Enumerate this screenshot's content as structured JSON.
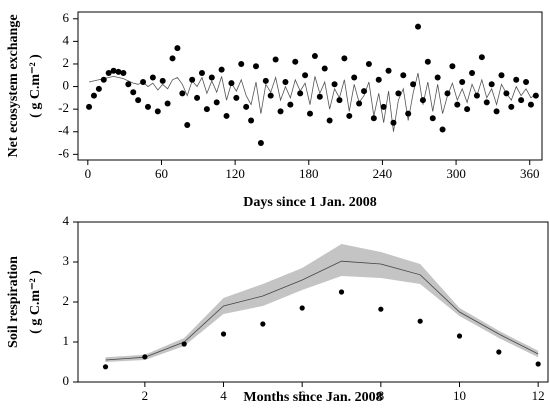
{
  "chart_data": [
    {
      "type": "scatter",
      "ylabel": "Net ecosystem exchange",
      "ylabel_unit": "( g C.m⁻² )",
      "xlabel": "Days since 1 Jan. 2008",
      "xlim": [
        -8,
        370
      ],
      "xticks": [
        0,
        60,
        120,
        180,
        240,
        300,
        360
      ],
      "ylim": [
        -6.5,
        6.6
      ],
      "yticks": [
        -6,
        -4,
        -2,
        0,
        2,
        4,
        6
      ],
      "x": [
        1,
        5,
        9,
        13,
        17,
        21,
        25,
        29,
        33,
        37,
        41,
        45,
        49,
        53,
        57,
        61,
        65,
        69,
        73,
        77,
        81,
        85,
        89,
        93,
        97,
        101,
        105,
        109,
        113,
        117,
        121,
        125,
        129,
        133,
        137,
        141,
        145,
        149,
        153,
        157,
        161,
        165,
        169,
        173,
        177,
        181,
        185,
        189,
        193,
        197,
        201,
        205,
        209,
        213,
        217,
        221,
        225,
        229,
        233,
        237,
        241,
        245,
        249,
        253,
        257,
        261,
        265,
        269,
        273,
        277,
        281,
        285,
        289,
        293,
        297,
        301,
        305,
        309,
        313,
        317,
        321,
        325,
        329,
        333,
        337,
        341,
        345,
        349,
        353,
        357,
        361,
        365
      ],
      "series": [
        {
          "color": "#555555",
          "style": "line",
          "values": [
            0.4,
            0.5,
            0.6,
            0.7,
            0.8,
            0.9,
            0.8,
            0.7,
            0.5,
            0.3,
            0.2,
            0.4,
            0.0,
            0.3,
            -0.3,
            0.2,
            -0.2,
            0.6,
            0.8,
            0.2,
            -0.8,
            0.5,
            0.0,
            0.8,
            -0.6,
            0.5,
            -0.5,
            0.9,
            -1.2,
            0.3,
            -0.4,
            0.6,
            -0.8,
            -1.6,
            0.4,
            -2.4,
            0.2,
            -0.5,
            0.8,
            -1.2,
            0.0,
            -1.0,
            0.6,
            -0.4,
            0.3,
            -1.6,
            0.9,
            -0.6,
            0.4,
            -2.0,
            -0.2,
            -1.0,
            0.6,
            -2.2,
            0.2,
            -1.4,
            -0.8,
            0.4,
            -2.6,
            -0.6,
            -3.2,
            -0.4,
            -4.0,
            -1.2,
            -0.2,
            -3.0,
            -0.6,
            1.2,
            -1.6,
            0.4,
            -2.2,
            0.2,
            -2.4,
            -0.8,
            0.3,
            -1.2,
            -0.2,
            -1.4,
            0.2,
            -0.8,
            0.6,
            -1.0,
            -0.2,
            -1.6,
            0.2,
            -0.6,
            -1.2,
            0.0,
            -0.8,
            -0.2,
            -1.0,
            -0.6
          ]
        },
        {
          "color": "#000000",
          "style": "dots",
          "values": [
            -1.8,
            -0.8,
            -0.2,
            0.6,
            1.2,
            1.4,
            1.3,
            1.2,
            0.2,
            -0.5,
            -1.2,
            0.4,
            -1.8,
            0.8,
            -2.2,
            0.5,
            -1.5,
            2.5,
            3.4,
            -0.6,
            -3.4,
            0.6,
            -1.0,
            1.2,
            -2.0,
            0.8,
            -1.4,
            1.5,
            -2.6,
            0.3,
            -1.0,
            2.0,
            -1.8,
            -3.0,
            1.8,
            -5.0,
            0.5,
            -0.8,
            2.4,
            -2.2,
            0.4,
            -1.6,
            2.2,
            -0.6,
            1.0,
            -2.4,
            2.7,
            -0.9,
            1.6,
            -3.0,
            0.2,
            -1.2,
            2.5,
            -2.6,
            0.8,
            -1.5,
            -0.4,
            2.0,
            -2.8,
            0.6,
            -1.8,
            1.4,
            -3.2,
            -0.6,
            1.0,
            -2.4,
            0.2,
            5.3,
            -1.2,
            2.2,
            -2.8,
            0.8,
            -3.8,
            -0.6,
            1.8,
            -1.6,
            0.4,
            -2.0,
            1.2,
            -0.8,
            2.6,
            -1.4,
            0.2,
            -2.2,
            1.0,
            -0.6,
            -1.8,
            0.6,
            -1.2,
            0.4,
            -1.6,
            -0.8
          ]
        }
      ]
    },
    {
      "type": "line",
      "ylabel": "Soil respiration",
      "ylabel_unit": "( g C.m⁻² )",
      "xlabel": "Months since  Jan. 2008",
      "xlim": [
        0.3,
        12.25
      ],
      "xticks": [
        2,
        4,
        6,
        8,
        10,
        12
      ],
      "ylim": [
        0,
        4
      ],
      "yticks": [
        0,
        1,
        2,
        3,
        4
      ],
      "x": [
        1,
        2,
        3,
        4,
        5,
        6,
        7,
        8,
        9,
        10,
        11,
        12
      ],
      "band": {
        "color": "#c4c4c4",
        "lower": [
          0.5,
          0.55,
          0.9,
          1.7,
          1.9,
          2.3,
          2.65,
          2.6,
          2.45,
          1.65,
          1.1,
          0.62
        ],
        "upper": [
          0.62,
          0.68,
          1.1,
          2.1,
          2.45,
          2.85,
          3.45,
          3.25,
          2.95,
          1.85,
          1.28,
          0.78
        ]
      },
      "series": [
        {
          "color": "#444444",
          "style": "line",
          "values": [
            0.55,
            0.62,
            1.0,
            1.9,
            2.15,
            2.55,
            3.02,
            2.95,
            2.68,
            1.75,
            1.2,
            0.7
          ]
        },
        {
          "color": "#000000",
          "style": "dots",
          "values": [
            0.38,
            0.63,
            0.95,
            1.2,
            1.45,
            1.85,
            2.25,
            1.82,
            1.52,
            1.15,
            0.75,
            0.45
          ]
        }
      ]
    }
  ]
}
